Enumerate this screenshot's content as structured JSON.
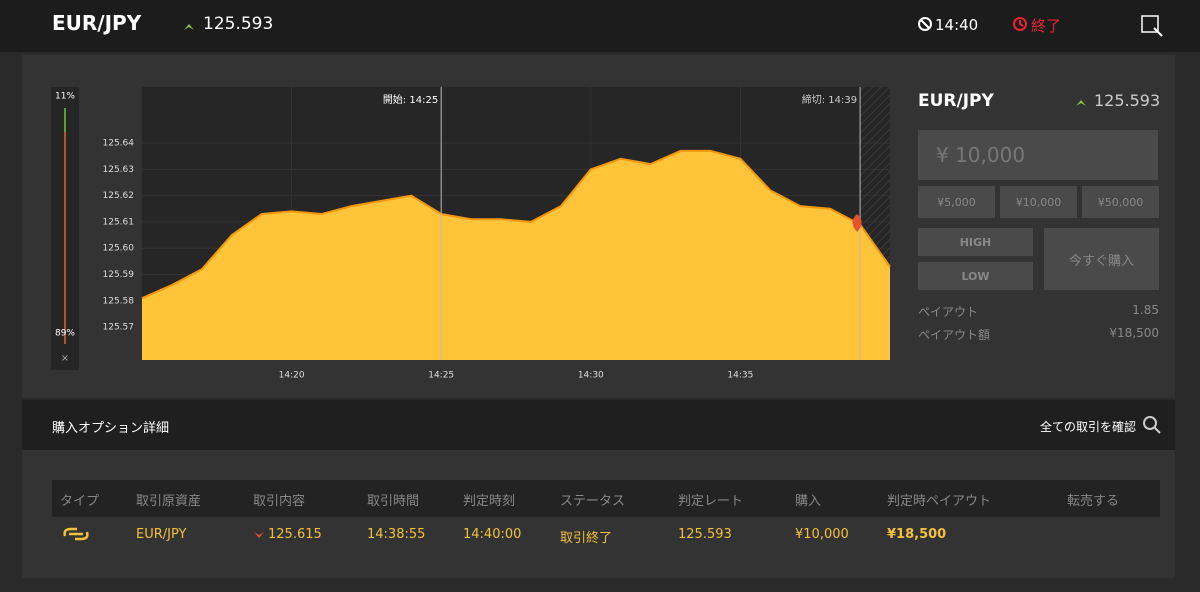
{
  "header": {
    "pair": "EUR/JPY",
    "rate": "125.593",
    "time": "14:40",
    "status": "終了"
  },
  "gauge": {
    "high": "11%",
    "low": "89%",
    "close": "×"
  },
  "chart_data": {
    "type": "area",
    "annotations": [
      "開始: 14:25",
      "締切: 14:39"
    ],
    "x": [
      "14:15",
      "14:16",
      "14:17",
      "14:18",
      "14:19",
      "14:20",
      "14:21",
      "14:22",
      "14:23",
      "14:24",
      "14:25",
      "14:26",
      "14:27",
      "14:28",
      "14:29",
      "14:30",
      "14:31",
      "14:32",
      "14:33",
      "14:34",
      "14:35",
      "14:36",
      "14:37",
      "14:38",
      "14:39",
      "14:40"
    ],
    "values": [
      125.581,
      125.586,
      125.592,
      125.605,
      125.613,
      125.614,
      125.613,
      125.616,
      125.618,
      125.62,
      125.613,
      125.611,
      125.611,
      125.61,
      125.616,
      125.63,
      125.634,
      125.632,
      125.637,
      125.637,
      125.634,
      125.622,
      125.616,
      125.615,
      125.609,
      125.593
    ],
    "color": "#ffc43a",
    "line_color": "#f2960a",
    "xticks": [
      "14:20",
      "14:25",
      "14:30",
      "14:35"
    ],
    "ylim": [
      125.5575,
      125.6613
    ],
    "yticks": [
      125.57,
      125.58,
      125.59,
      {
        "value": 125.6,
        "label": "125.60"
      },
      125.61,
      125.62,
      125.63,
      125.64
    ],
    "grid": true
  },
  "panel": {
    "pair": "EUR/JPY",
    "rate": "125.593",
    "amount": "¥ 10,000",
    "presets": [
      "¥5,000",
      "¥10,000",
      "¥50,000"
    ],
    "high": "HIGH",
    "low": "LOW",
    "buy": "今すぐ購入",
    "payout_label": "ペイアウト",
    "payout": "1.85",
    "payout_amount_label": "ペイアウト額",
    "payout_amount": "¥18,500"
  },
  "section": {
    "title": "購入オプション詳細",
    "link": "全ての取引を確認"
  },
  "table": {
    "headers": [
      "タイプ",
      "取引原資産",
      "取引内容",
      "取引時間",
      "判定時刻",
      "ステータス",
      "判定レート",
      "購入",
      "判定時ペイアウト",
      "転売する"
    ],
    "rows": [
      [
        "EUR/JPY",
        "125.615",
        "14:38:55",
        "14:40:00",
        "取引終了",
        "125.593",
        "¥10,000",
        "¥18,500"
      ]
    ]
  }
}
